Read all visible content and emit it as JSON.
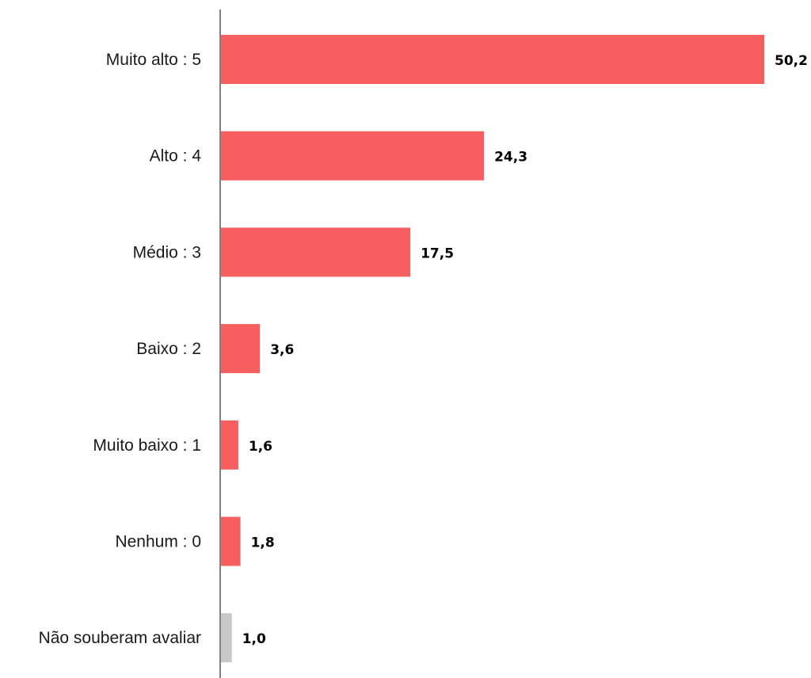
{
  "chart_data": {
    "type": "bar",
    "orientation": "horizontal",
    "categories": [
      "Muito alto : 5",
      "Alto : 4",
      "Médio : 3",
      "Baixo : 2",
      "Muito baixo : 1",
      "Nenhum : 0",
      "Não souberam avaliar"
    ],
    "values": [
      50.2,
      24.3,
      17.5,
      3.6,
      1.6,
      1.8,
      1.0
    ],
    "value_labels": [
      "50,2",
      "24,3",
      "17,5",
      "3,6",
      "1,6",
      "1,8",
      "1,0"
    ],
    "bar_colors": [
      "#f65e60",
      "#f65e60",
      "#f65e60",
      "#f65e60",
      "#f65e60",
      "#f65e60",
      "#c8c8c8"
    ],
    "axis_color": "#808080",
    "title": "",
    "xlabel": "",
    "ylabel": "",
    "xlim": [
      0,
      50.2
    ],
    "grid": false,
    "legend": "none"
  }
}
